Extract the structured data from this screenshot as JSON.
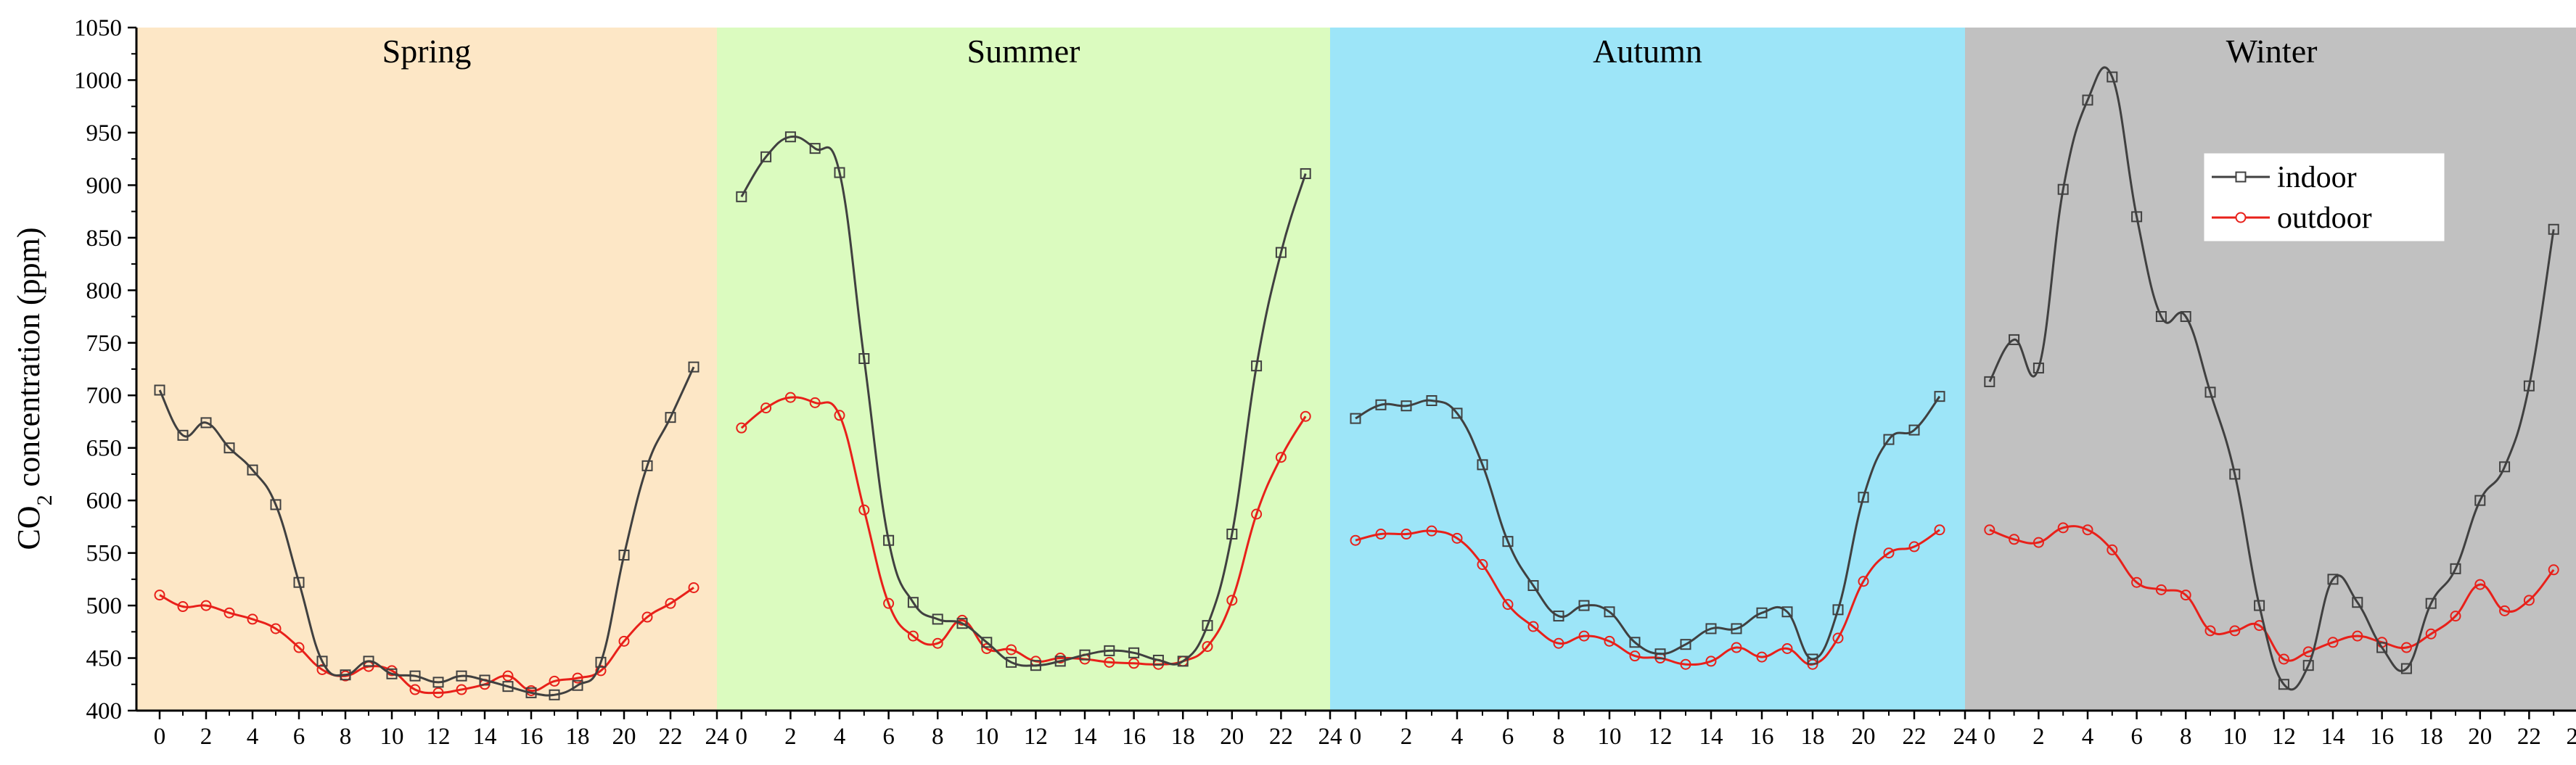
{
  "chart_data": {
    "type": "line",
    "ylabel_main": "CO",
    "ylabel_sub": "2",
    "ylabel_rest": " concentration (ppm)",
    "ylim": [
      400,
      1050
    ],
    "yticks": [
      400,
      450,
      500,
      550,
      600,
      650,
      700,
      750,
      800,
      850,
      900,
      950,
      1000,
      1050
    ],
    "xlim": [
      -1,
      24
    ],
    "xticks": [
      0,
      2,
      4,
      6,
      8,
      10,
      12,
      14,
      16,
      18,
      20,
      22,
      24
    ],
    "legend_position": "top-right (winter panel)",
    "legend": [
      {
        "label": "indoor",
        "color": "#404040",
        "marker": "square"
      },
      {
        "label": "outdoor",
        "color": "#e8201a",
        "marker": "circle"
      }
    ],
    "panels": [
      {
        "title": "Spring",
        "background": "#fde7c6",
        "indoor": [
          705,
          662,
          674,
          650,
          629,
          596,
          522,
          447,
          434,
          447,
          435,
          433,
          427,
          433,
          429,
          423,
          417,
          415,
          424,
          446,
          548,
          633,
          679,
          727
        ],
        "outdoor": [
          510,
          499,
          500,
          493,
          487,
          478,
          460,
          439,
          433,
          442,
          438,
          420,
          417,
          420,
          425,
          433,
          419,
          428,
          431,
          438,
          466,
          489,
          502,
          517
        ]
      },
      {
        "title": "Summer",
        "background": "#dbfbbf",
        "indoor": [
          889,
          927,
          946,
          935,
          912,
          735,
          562,
          503,
          487,
          483,
          465,
          446,
          443,
          447,
          453,
          457,
          455,
          448,
          447,
          481,
          568,
          728,
          836,
          911
        ],
        "outdoor": [
          669,
          688,
          698,
          693,
          681,
          591,
          502,
          471,
          464,
          486,
          459,
          458,
          447,
          450,
          449,
          446,
          445,
          444,
          447,
          461,
          505,
          587,
          641,
          680
        ]
      },
      {
        "title": "Autumn",
        "background": "#9de5f8",
        "indoor": [
          678,
          691,
          690,
          695,
          683,
          634,
          561,
          519,
          490,
          500,
          494,
          465,
          454,
          463,
          478,
          478,
          493,
          494,
          449,
          496,
          603,
          658,
          667,
          699
        ],
        "outdoor": [
          562,
          568,
          568,
          571,
          564,
          539,
          501,
          480,
          464,
          471,
          466,
          452,
          450,
          444,
          447,
          460,
          451,
          459,
          444,
          469,
          523,
          550,
          556,
          572
        ]
      },
      {
        "title": "Winter",
        "background": "#c1c1c1",
        "indoor": [
          713,
          753,
          726,
          896,
          981,
          1003,
          870,
          775,
          775,
          703,
          625,
          500,
          425,
          443,
          525,
          503,
          460,
          440,
          502,
          535,
          600,
          632,
          709,
          858
        ],
        "outdoor": [
          572,
          563,
          560,
          574,
          572,
          553,
          522,
          515,
          510,
          476,
          476,
          481,
          449,
          456,
          465,
          471,
          465,
          460,
          473,
          490,
          520,
          495,
          505,
          534
        ]
      }
    ]
  }
}
